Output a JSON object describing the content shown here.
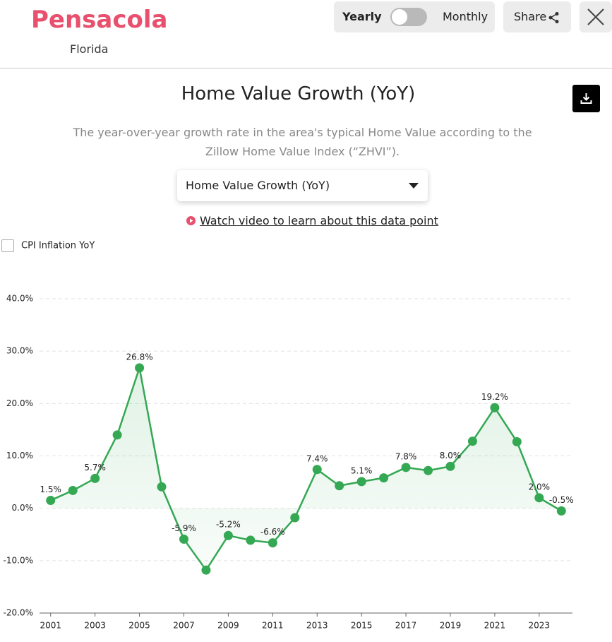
{
  "header": {
    "city": "Pensacola",
    "state": "Florida",
    "toggle_left": "Yearly",
    "toggle_right": "Monthly",
    "share": "Share"
  },
  "title": "Home Value Growth (YoY)",
  "subtitle": "The year-over-year growth rate in the area's typical Home Value according to the Zillow Home Value Index (“ZHVI”).",
  "dropdown": "Home Value Growth (YoY)",
  "video_link": "Watch video to learn about this data point",
  "checkbox": "CPI Inflation YoY",
  "chart_data": {
    "type": "line",
    "x": [
      2001,
      2002,
      2003,
      2004,
      2005,
      2006,
      2007,
      2008,
      2009,
      2010,
      2011,
      2012,
      2013,
      2014,
      2015,
      2016,
      2017,
      2018,
      2019,
      2020,
      2021,
      2022,
      2023,
      2024
    ],
    "series": [
      {
        "color": "#34a853",
        "values": [
          1.5,
          3.4,
          5.7,
          14.0,
          26.8,
          4.1,
          -5.9,
          -11.8,
          -5.2,
          -6.1,
          -6.6,
          -1.8,
          7.4,
          4.3,
          5.1,
          5.8,
          7.8,
          7.2,
          8.0,
          12.8,
          19.2,
          12.7,
          2.0,
          -0.5
        ],
        "value_labels": [
          "1.5%",
          null,
          "5.7%",
          null,
          "26.8%",
          null,
          "-5.9%",
          null,
          "-5.2%",
          null,
          "-6.6%",
          null,
          "7.4%",
          null,
          "5.1%",
          null,
          "7.8%",
          null,
          "8.0%",
          null,
          "19.2%",
          null,
          "2.0%",
          "-0.5%"
        ]
      }
    ],
    "xlim": [
      2000.5,
      2024.5
    ],
    "xticks": [
      2001,
      2003,
      2005,
      2007,
      2009,
      2011,
      2013,
      2015,
      2017,
      2019,
      2021,
      2023
    ],
    "ylim": [
      -20,
      40
    ],
    "yticks": [
      {
        "value": -20,
        "label": "-20.0%"
      },
      {
        "value": -10,
        "label": "-10.0%"
      },
      {
        "value": 0,
        "label": "0.0%"
      },
      {
        "value": 10,
        "label": "10.0%"
      },
      {
        "value": 20,
        "label": "20.0%"
      },
      {
        "value": 30,
        "label": "30.0%"
      },
      {
        "value": 40,
        "label": "40.0%"
      }
    ],
    "grid": true
  }
}
